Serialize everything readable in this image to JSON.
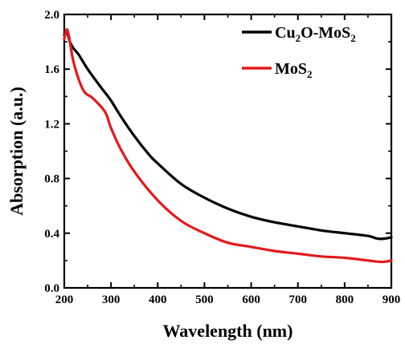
{
  "chart_data": {
    "type": "line",
    "title": "",
    "xlabel": "Wavelength (nm)",
    "ylabel": "Absorption (a.u.)",
    "xlim": [
      200,
      900
    ],
    "ylim": [
      0.0,
      2.0
    ],
    "x_ticks": [
      "200",
      "300",
      "400",
      "500",
      "600",
      "700",
      "800",
      "900"
    ],
    "y_ticks": [
      "0.0",
      "0.4",
      "0.8",
      "1.2",
      "1.6",
      "2.0"
    ],
    "legend_position": "top-right",
    "grid": false,
    "series": [
      {
        "name": "Cu2O-MoS2",
        "label_parts": [
          [
            "Cu",
            "normal"
          ],
          [
            "2",
            "sub"
          ],
          [
            "O-MoS",
            "normal"
          ],
          [
            "2",
            "sub"
          ]
        ],
        "color": "#000000",
        "x": [
          200,
          205,
          212,
          220,
          230,
          250,
          280,
          300,
          320,
          350,
          380,
          400,
          450,
          500,
          550,
          600,
          650,
          700,
          750,
          800,
          850,
          870,
          885,
          900
        ],
        "y": [
          1.85,
          1.88,
          1.8,
          1.75,
          1.71,
          1.6,
          1.46,
          1.37,
          1.26,
          1.11,
          0.98,
          0.91,
          0.76,
          0.66,
          0.58,
          0.52,
          0.48,
          0.45,
          0.42,
          0.4,
          0.38,
          0.36,
          0.36,
          0.37
        ]
      },
      {
        "name": "MoS2",
        "label_parts": [
          [
            "MoS",
            "normal"
          ],
          [
            "2",
            "sub"
          ]
        ],
        "color": "#e31a1c",
        "x": [
          200,
          205,
          210,
          220,
          240,
          260,
          280,
          290,
          300,
          320,
          350,
          400,
          450,
          500,
          550,
          600,
          650,
          700,
          750,
          800,
          850,
          880,
          900
        ],
        "y": [
          1.82,
          1.89,
          1.84,
          1.65,
          1.45,
          1.39,
          1.32,
          1.27,
          1.17,
          1.02,
          0.85,
          0.64,
          0.49,
          0.4,
          0.33,
          0.3,
          0.27,
          0.25,
          0.23,
          0.22,
          0.2,
          0.19,
          0.2
        ]
      }
    ]
  }
}
